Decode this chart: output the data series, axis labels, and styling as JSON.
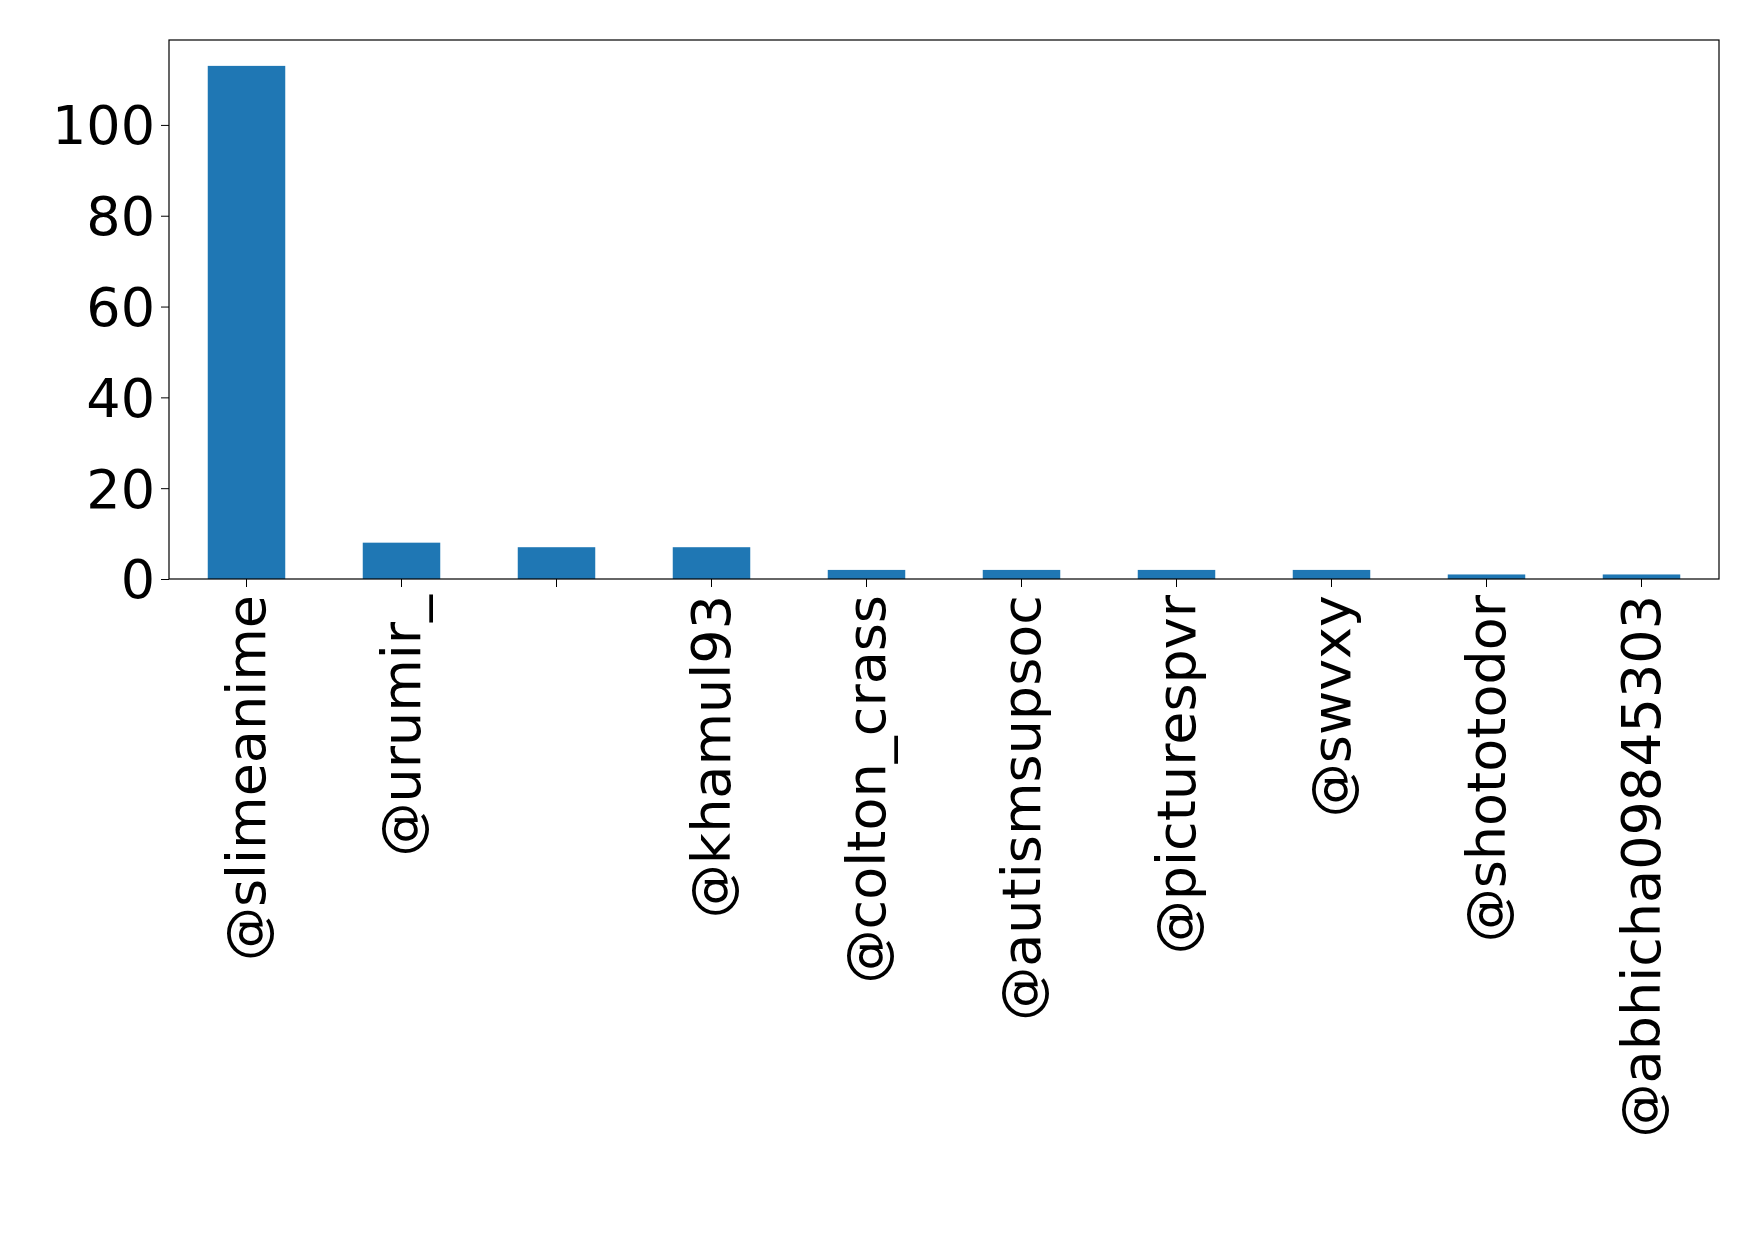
{
  "chart_data": {
    "type": "bar",
    "categories": [
      "@slimeanime",
      "@urumir_",
      null,
      "@khamul93",
      "@colton_crass",
      "@autismsupsoc",
      "@picturespvr",
      "@swvxy",
      "@shototodor",
      "@abhicha09845303"
    ],
    "values": [
      113,
      8,
      7,
      7,
      2,
      2,
      2,
      2,
      1,
      1
    ],
    "color": "#1f77b4",
    "ylim": [
      0,
      118.7
    ],
    "yticks": [
      0,
      20,
      40,
      60,
      80,
      100
    ],
    "grid": false
  }
}
